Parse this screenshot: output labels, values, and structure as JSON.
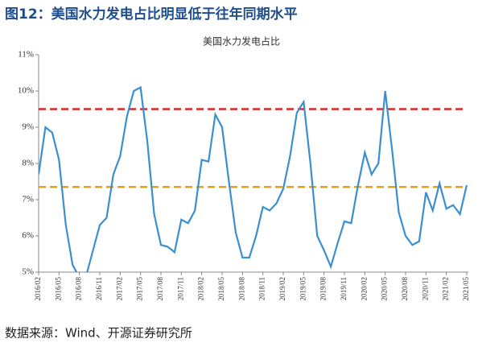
{
  "page_title": "图12：美国水力发电占比明显低于往年同期水平",
  "source": "数据来源：Wind、开源证券研究所",
  "chart_data": {
    "type": "line",
    "title": "美国水力发电占比",
    "categories": [
      "2016/02",
      null,
      null,
      "2016/05",
      null,
      null,
      "2016/08",
      null,
      null,
      "2016/11",
      null,
      null,
      "2017/02",
      null,
      null,
      "2017/05",
      null,
      null,
      "2017/08",
      null,
      null,
      "2017/11",
      null,
      null,
      "2018/02",
      null,
      null,
      "2018/05",
      null,
      null,
      "2018/08",
      null,
      null,
      "2018/11",
      null,
      null,
      "2019/02",
      null,
      null,
      "2019/05",
      null,
      null,
      "2019/08",
      null,
      null,
      "2019/11",
      null,
      null,
      "2020/02",
      null,
      null,
      "2020/05",
      null,
      null,
      "2020/08",
      null,
      null,
      "2020/11",
      null,
      null,
      "2021/02",
      null,
      null,
      "2021/05"
    ],
    "series": [
      {
        "color": "#3a8fd0",
        "values": [
          7.7,
          9.0,
          8.85,
          8.1,
          6.3,
          5.2,
          4.85,
          4.9,
          5.6,
          6.3,
          6.5,
          7.7,
          8.2,
          9.3,
          10.0,
          10.1,
          8.6,
          6.6,
          5.75,
          5.7,
          5.55,
          6.45,
          6.35,
          6.7,
          8.1,
          8.05,
          9.35,
          9.0,
          7.5,
          6.1,
          5.4,
          5.4,
          6.0,
          6.8,
          6.7,
          6.9,
          7.3,
          8.2,
          9.4,
          9.7,
          8.0,
          6.0,
          5.6,
          5.15,
          5.8,
          6.4,
          6.35,
          7.4,
          8.3,
          7.7,
          8.0,
          10.0,
          8.4,
          6.65,
          6.0,
          5.75,
          5.85,
          7.2,
          6.7,
          7.45,
          6.75,
          6.85,
          6.6,
          7.4
        ]
      }
    ],
    "reference_lines": [
      {
        "value": 9.5,
        "color": "#d62728"
      },
      {
        "value": 7.35,
        "color": "#e0a31a"
      }
    ],
    "ylim": [
      5,
      11
    ],
    "yticks": [
      {
        "value": 5,
        "label": "5%"
      },
      {
        "value": 6,
        "label": "6%"
      },
      {
        "value": 7,
        "label": "7%"
      },
      {
        "value": 8,
        "label": "8%"
      },
      {
        "value": 9,
        "label": "9%"
      },
      {
        "value": 10,
        "label": "10%"
      },
      {
        "value": 11,
        "label": "11%"
      }
    ]
  }
}
